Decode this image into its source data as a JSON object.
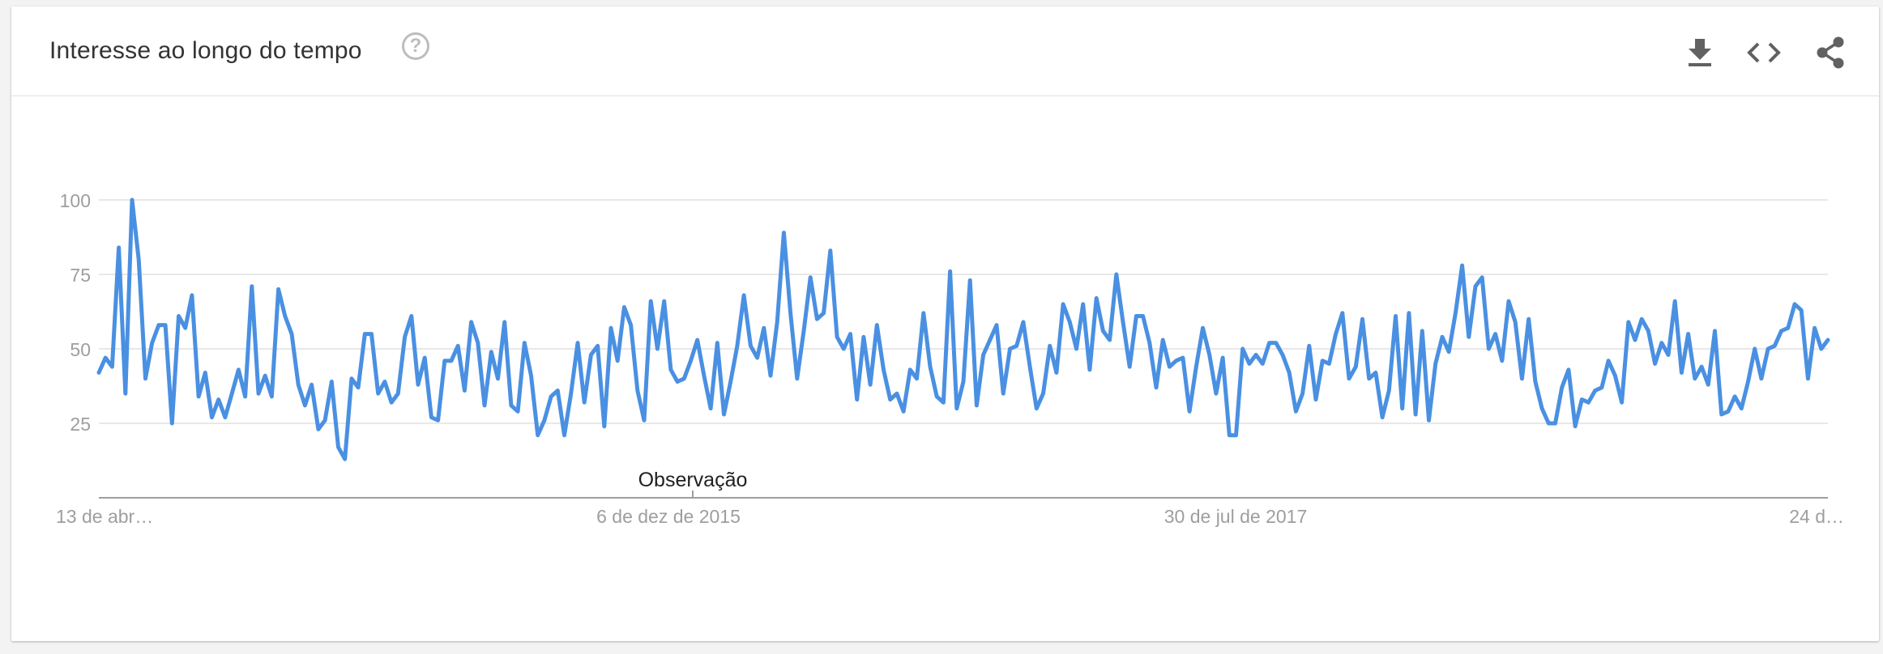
{
  "header": {
    "title": "Interesse ao longo do tempo",
    "help_icon": "help-circle-icon",
    "actions": [
      "download-icon",
      "embed-code-icon",
      "share-icon"
    ]
  },
  "colors": {
    "line": "#4a90e2",
    "grid": "#e0e0e0",
    "axis": "#9e9e9e",
    "tick_text": "#9e9e9e",
    "icon": "#616161"
  },
  "chart_data": {
    "type": "line",
    "title": "Interesse ao longo do tempo",
    "xlabel": "",
    "ylabel": "",
    "ylim": [
      0,
      100
    ],
    "y_ticks": [
      25,
      50,
      75,
      100
    ],
    "x_tick_labels": [
      "13 de abr…",
      "6 de dez de 2015",
      "30 de jul de 2017",
      "24 d…"
    ],
    "annotation": "Observação",
    "grid": true,
    "series": [
      {
        "values": [
          42,
          47,
          44,
          84,
          35,
          100,
          80,
          40,
          52,
          58,
          58,
          25,
          61,
          57,
          68,
          34,
          42,
          27,
          33,
          27,
          35,
          43,
          34,
          71,
          35,
          41,
          34,
          70,
          61,
          55,
          38,
          31,
          38,
          23,
          26,
          39,
          17,
          13,
          40,
          37,
          55,
          55,
          35,
          39,
          32,
          35,
          54,
          61,
          38,
          47,
          27,
          26,
          46,
          46,
          51,
          36,
          59,
          52,
          31,
          49,
          40,
          59,
          31,
          29,
          52,
          41,
          21,
          26,
          34,
          36,
          21,
          35,
          52,
          32,
          48,
          51,
          24,
          57,
          46,
          64,
          58,
          36,
          26,
          66,
          50,
          66,
          43,
          39,
          40,
          46,
          53,
          41,
          30,
          52,
          28,
          39,
          51,
          68,
          51,
          47,
          57,
          41,
          59,
          89,
          62,
          40,
          56,
          74,
          60,
          62,
          83,
          54,
          50,
          55,
          33,
          54,
          38,
          58,
          43,
          33,
          35,
          29,
          43,
          40,
          62,
          44,
          34,
          32,
          76,
          30,
          39,
          73,
          31,
          48,
          53,
          58,
          35,
          50,
          51,
          59,
          44,
          30,
          35,
          51,
          42,
          65,
          59,
          50,
          65,
          43,
          67,
          56,
          53,
          75,
          59,
          44,
          61,
          61,
          52,
          37,
          53,
          44,
          46,
          47,
          29,
          44,
          57,
          48,
          35,
          47,
          21,
          21,
          50,
          45,
          48,
          45,
          52,
          52,
          48,
          42,
          29,
          35,
          51,
          33,
          46,
          45,
          55,
          62,
          40,
          44,
          60,
          40,
          42,
          27,
          36,
          61,
          30,
          62,
          28,
          56,
          26,
          45,
          54,
          49,
          62,
          78,
          54,
          71,
          74,
          50,
          55,
          46,
          66,
          59,
          40,
          60,
          39,
          30,
          25,
          25,
          37,
          43,
          24,
          33,
          32,
          36,
          37,
          46,
          41,
          32,
          59,
          53,
          60,
          56,
          45,
          52,
          48,
          66,
          42,
          55,
          40,
          44,
          38,
          56,
          28,
          29,
          34,
          30,
          39,
          50,
          40,
          50,
          51,
          56,
          57,
          65,
          63,
          40,
          57,
          50,
          53
        ]
      }
    ]
  }
}
